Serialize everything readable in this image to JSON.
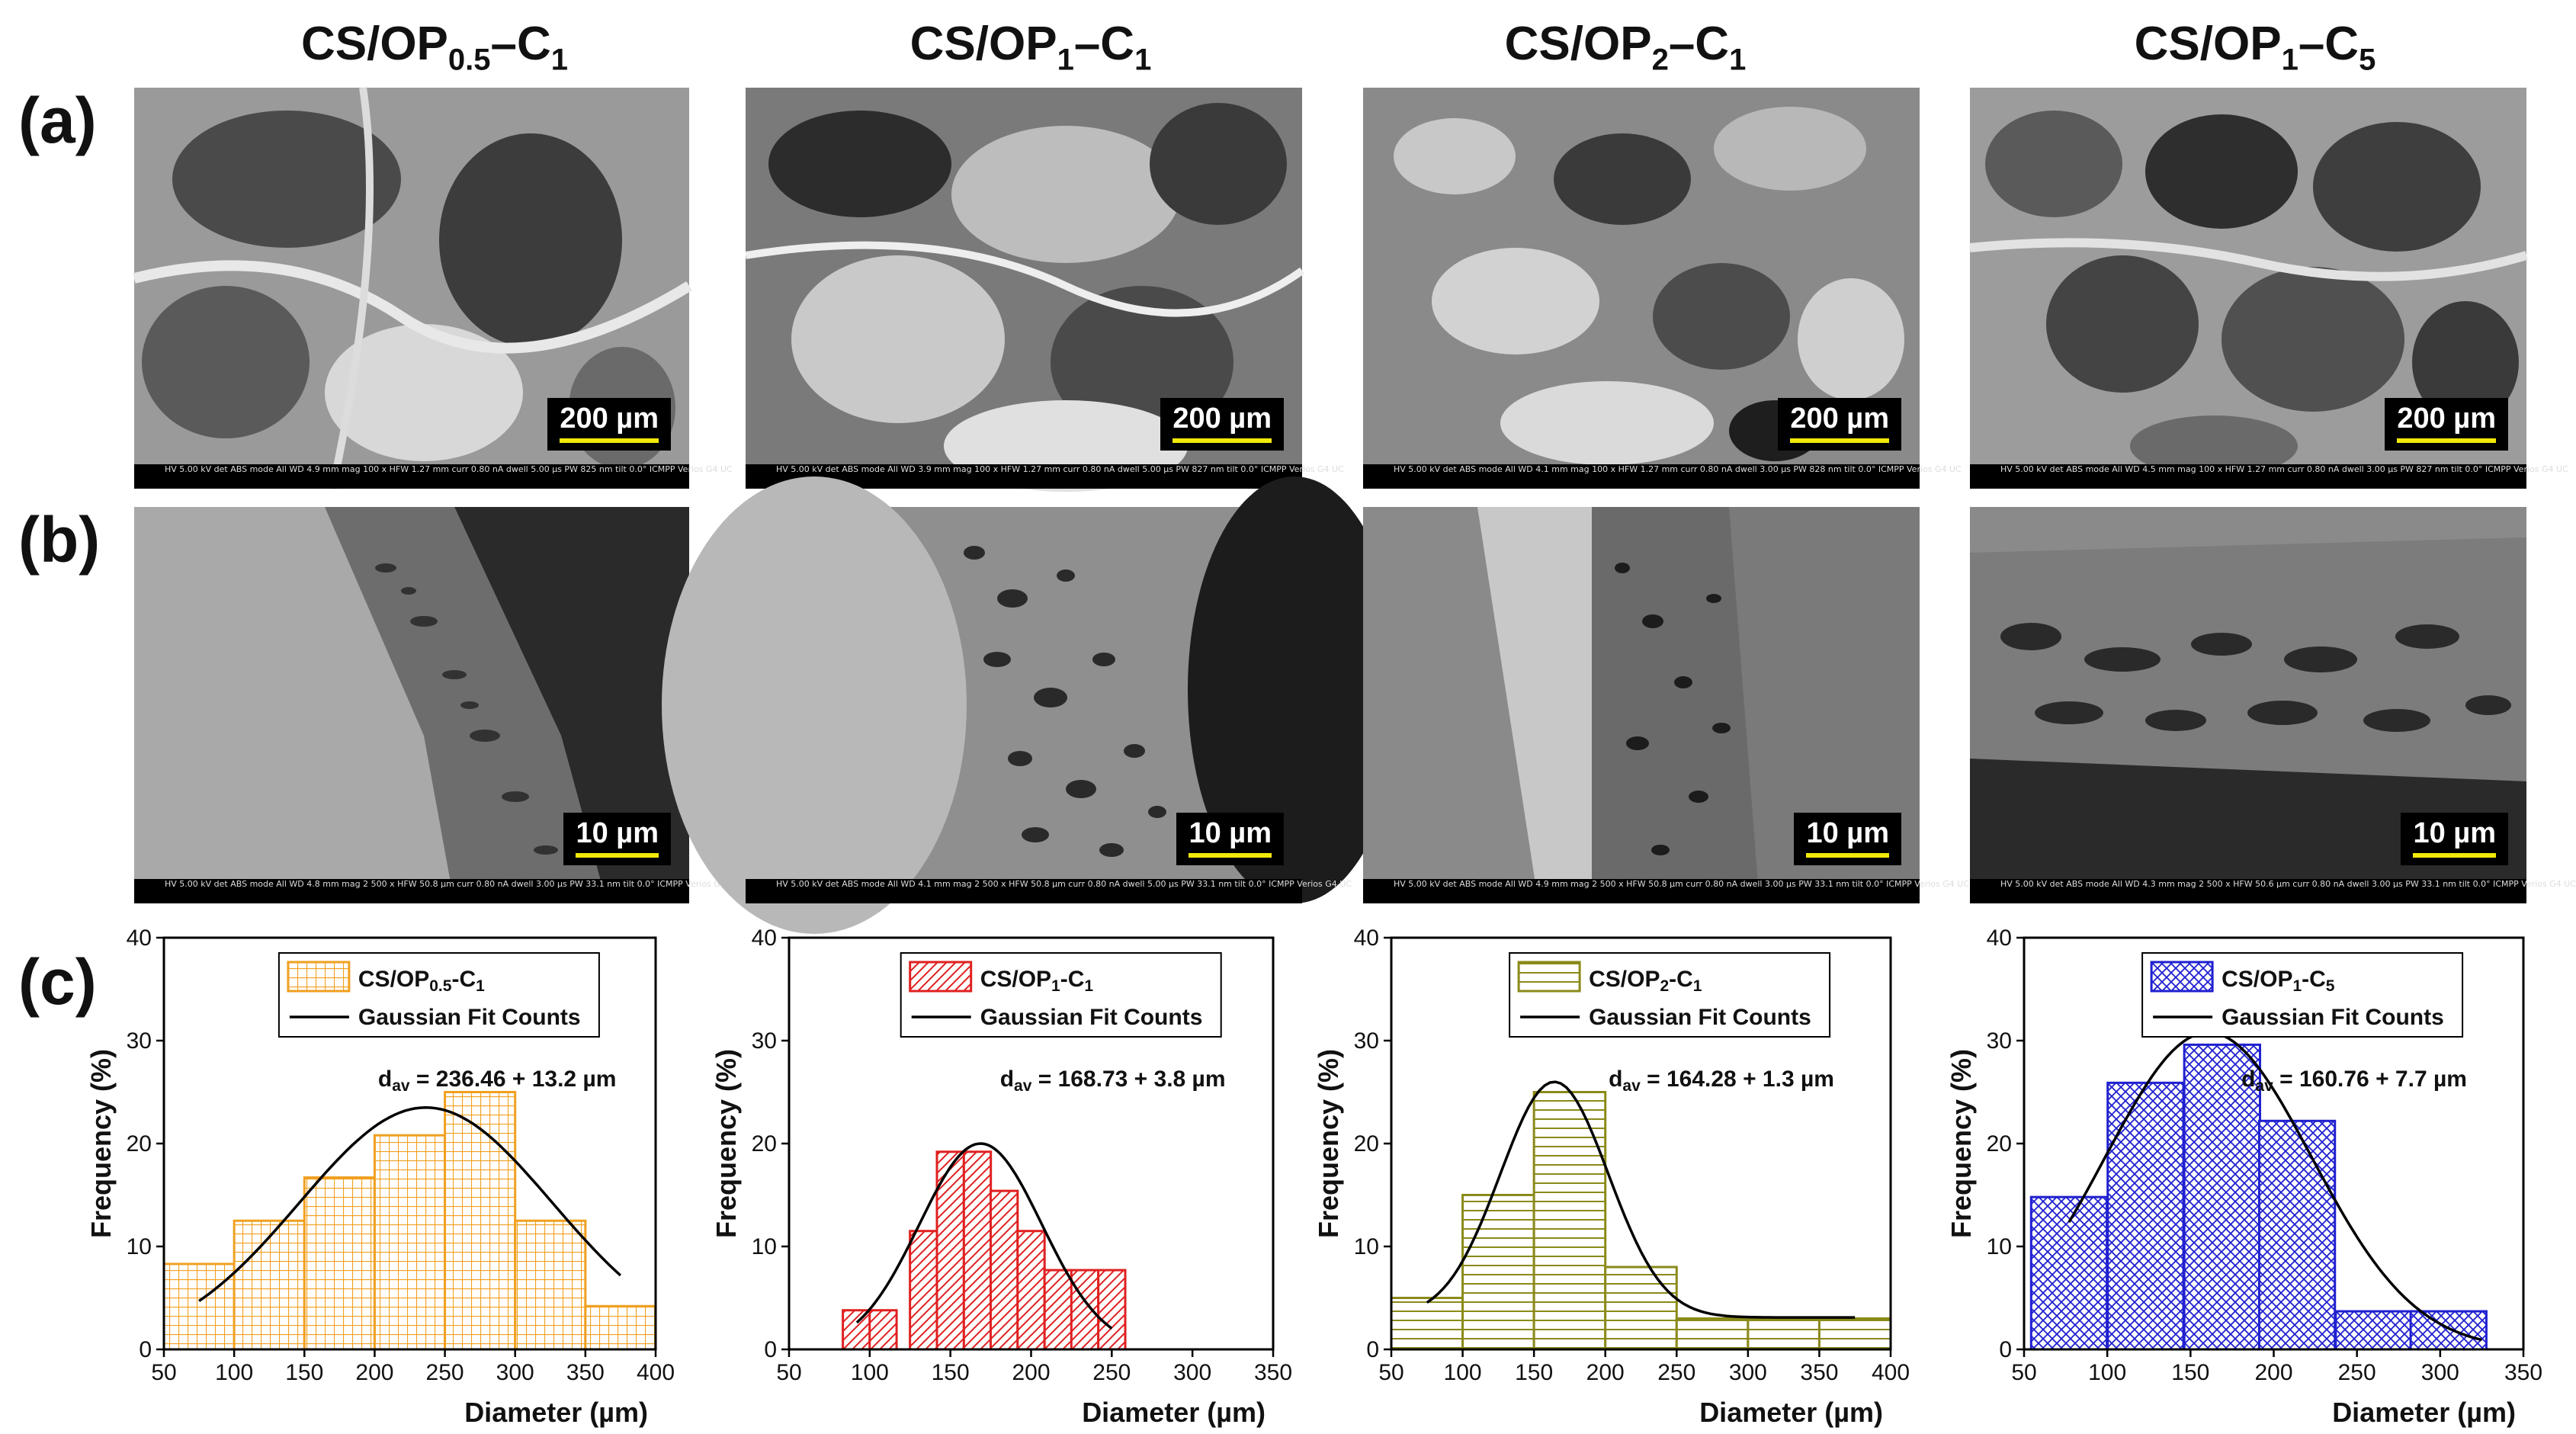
{
  "column_titles": [
    {
      "base": "CS/OP",
      "sub": "0.5",
      "tail": "–C",
      "tail_sub": "1"
    },
    {
      "base": "CS/OP",
      "sub": "1",
      "tail": "–C",
      "tail_sub": "1"
    },
    {
      "base": "CS/OP",
      "sub": "2",
      "tail": "–C",
      "tail_sub": "1"
    },
    {
      "base": "CS/OP",
      "sub": "1",
      "tail": "–C",
      "tail_sub": "5"
    }
  ],
  "row_labels": {
    "a": "(a)",
    "b": "(b)",
    "c": "(c)"
  },
  "sem_row_a": {
    "scale_label": "200 µm",
    "databars": [
      "HV 5.00 kV  det ABS  mode All  WD 4.9 mm  mag 100 x  HFW 1.27 mm  curr 0.80 nA  dwell 5.00 µs  PW 825 nm  tilt 0.0°   ICMPP Verios G4 UC",
      "HV 5.00 kV  det ABS  mode All  WD 3.9 mm  mag 100 x  HFW 1.27 mm  curr 0.80 nA  dwell 5.00 µs  PW 827 nm  tilt 0.0°   ICMPP Verios G4 UC",
      "HV 5.00 kV  det ABS  mode All  WD 4.1 mm  mag 100 x  HFW 1.27 mm  curr 0.80 nA  dwell 3.00 µs  PW 828 nm  tilt 0.0°   ICMPP Verios G4 UC",
      "HV 5.00 kV  det ABS  mode All  WD 4.5 mm  mag 100 x  HFW 1.27 mm  curr 0.80 nA  dwell 3.00 µs  PW 827 nm  tilt 0.0°   ICMPP Verios G4 UC"
    ]
  },
  "sem_row_b": {
    "scale_label": "10 µm",
    "databars": [
      "HV 5.00 kV  det ABS  mode All  WD 4.8 mm  mag 2 500 x  HFW 50.8 µm  curr 0.80 nA  dwell 3.00 µs  PW 33.1 nm  tilt 0.0°   ICMPP Verios G4 UC",
      "HV 5.00 kV  det ABS  mode All  WD 4.1 mm  mag 2 500 x  HFW 50.8 µm  curr 0.80 nA  dwell 5.00 µs  PW 33.1 nm  tilt 0.0°   ICMPP Verios G4 UC",
      "HV 5.00 kV  det ABS  mode All  WD 4.9 mm  mag 2 500 x  HFW 50.8 µm  curr 0.80 nA  dwell 3.00 µs  PW 33.1 nm  tilt 0.0°   ICMPP Verios G4 UC",
      "HV 5.00 kV  det ABS  mode All  WD 4.3 mm  mag 2 500 x  HFW 50.6 µm  curr 0.80 nA  dwell 3.00 µs  PW 33.1 nm  tilt 0.0°   ICMPP Verios G4 UC"
    ]
  },
  "chart_data": [
    {
      "type": "bar",
      "title": "",
      "legend": {
        "sample": "CS/OP0.5-C1",
        "sample_base": "CS/OP",
        "sample_sub1": "0.5",
        "sample_mid": "-C",
        "sample_sub2": "1",
        "fit": "Gaussian Fit Counts"
      },
      "annotation": {
        "d": "d",
        "sub": "av",
        "text": " = 236.46 + 13.2 µm"
      },
      "xlabel": "Diameter (µm)",
      "ylabel": "Frequency (%)",
      "xlim": [
        50,
        400
      ],
      "ylim": [
        0,
        40
      ],
      "xticks": [
        50,
        100,
        150,
        200,
        250,
        300,
        350,
        400
      ],
      "yticks": [
        0,
        10,
        20,
        30,
        40
      ],
      "bin_width": 50,
      "bins": [
        75,
        125,
        175,
        225,
        275,
        325,
        375
      ],
      "values": [
        8.3,
        12.5,
        16.7,
        20.8,
        25,
        12.5,
        4.2
      ],
      "pattern": "grid",
      "color": "#f0a020",
      "fit": {
        "mean": 236.46,
        "sigma": 90,
        "amp": 23.5,
        "x_range": [
          75,
          375
        ]
      }
    },
    {
      "type": "bar",
      "title": "",
      "legend": {
        "sample": "CS/OP1-C1",
        "sample_base": "CS/OP",
        "sample_sub1": "1",
        "sample_mid": "-C",
        "sample_sub2": "1",
        "fit": "Gaussian Fit Counts"
      },
      "annotation": {
        "d": "d",
        "sub": "av",
        "text": " = 168.73 + 3.8 µm"
      },
      "xlabel": "Diameter (µm)",
      "ylabel": "Frequency (%)",
      "xlim": [
        50,
        350
      ],
      "ylim": [
        0,
        40
      ],
      "xticks": [
        50,
        100,
        150,
        200,
        250,
        300,
        350
      ],
      "yticks": [
        0,
        10,
        20,
        30,
        40
      ],
      "bin_width": 16.7,
      "bins": [
        91.7,
        108.3,
        133.3,
        150,
        166.7,
        183.3,
        200,
        216.7,
        233.3,
        250
      ],
      "values": [
        3.8,
        3.8,
        11.5,
        19.2,
        19.2,
        15.4,
        11.5,
        7.7,
        7.7,
        7.7
      ],
      "pattern": "diagonal",
      "color": "#e02020",
      "fit": {
        "mean": 168.73,
        "sigma": 38,
        "amp": 20,
        "x_range": [
          92,
          250
        ]
      }
    },
    {
      "type": "bar",
      "title": "",
      "legend": {
        "sample": "CS/OP2-C1",
        "sample_base": "CS/OP",
        "sample_sub1": "2",
        "sample_mid": "-C",
        "sample_sub2": "1",
        "fit": "Gaussian Fit Counts"
      },
      "annotation": {
        "d": "d",
        "sub": "av",
        "text": " = 164.28 + 1.3 µm"
      },
      "xlabel": "Diameter (µm)",
      "ylabel": "Frequency (%)",
      "xlim": [
        50,
        400
      ],
      "ylim": [
        0,
        40
      ],
      "xticks": [
        50,
        100,
        150,
        200,
        250,
        300,
        350,
        400
      ],
      "yticks": [
        0,
        10,
        20,
        30,
        40
      ],
      "bin_width": 50,
      "bins": [
        75,
        125,
        175,
        225,
        275,
        325,
        375
      ],
      "values": [
        5,
        15,
        25,
        8,
        3,
        3,
        3
      ],
      "pattern": "horizontal",
      "color": "#8a8a1a",
      "fit": {
        "mean": 164.28,
        "sigma": 38,
        "amp": 22.9,
        "baseline": 3.1,
        "x_range": [
          75,
          375
        ]
      }
    },
    {
      "type": "bar",
      "title": "",
      "legend": {
        "sample": "CS/OP1-C5",
        "sample_base": "CS/OP",
        "sample_sub1": "1",
        "sample_mid": "-C",
        "sample_sub2": "5",
        "fit": "Gaussian Fit Counts"
      },
      "annotation": {
        "d": "d",
        "sub": "av",
        "text": " = 160.76 + 7.7 µm"
      },
      "xlabel": "Diameter (µm)",
      "ylabel": "Frequency (%)",
      "xlim": [
        50,
        350
      ],
      "ylim": [
        0,
        40
      ],
      "xticks": [
        50,
        100,
        150,
        200,
        250,
        300,
        350
      ],
      "yticks": [
        0,
        10,
        20,
        30,
        40
      ],
      "bin_width": 45.5,
      "bins": [
        77,
        123,
        169,
        214,
        260,
        305
      ],
      "values": [
        14.8,
        25.9,
        29.6,
        22.2,
        3.7,
        3.7
      ],
      "pattern": "crosshatch",
      "color": "#2020d0",
      "fit": {
        "mean": 160.76,
        "sigma": 62,
        "amp": 30.8,
        "x_range": [
          77,
          325
        ]
      }
    }
  ]
}
